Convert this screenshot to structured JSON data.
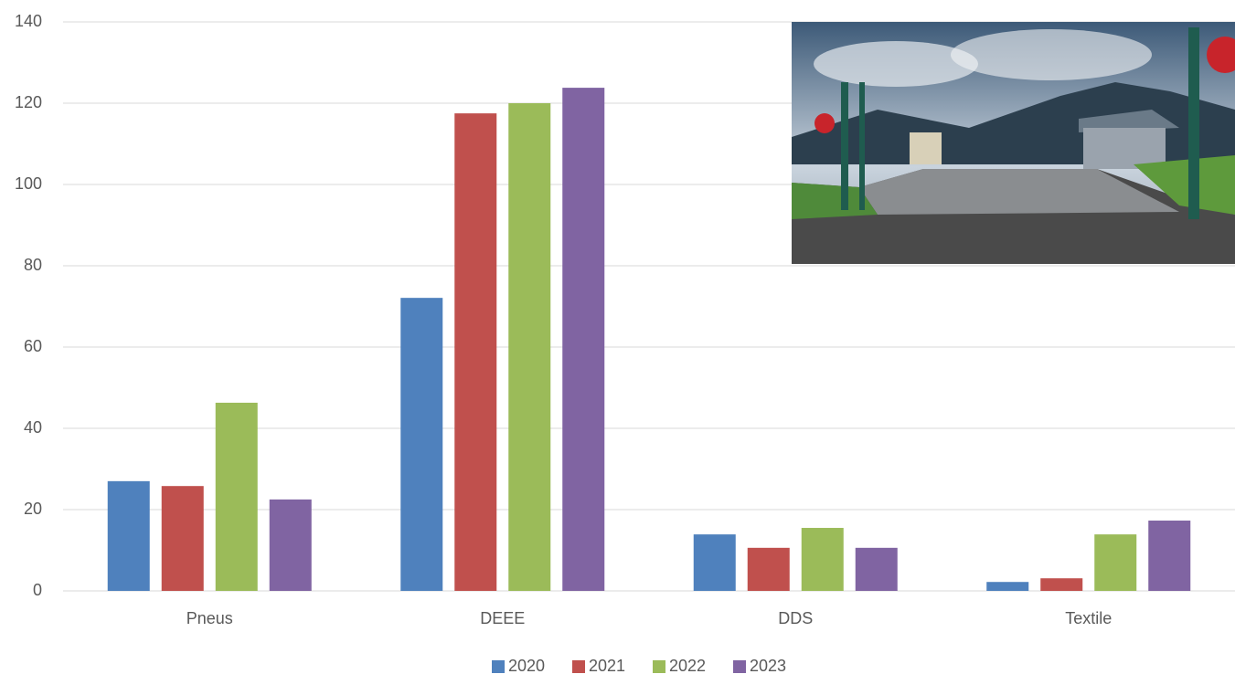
{
  "chart_data": {
    "type": "bar",
    "categories": [
      "Pneus",
      "DEEE",
      "DDS",
      "Textile"
    ],
    "series": [
      {
        "name": "2020",
        "color": "#4f81bd",
        "values": [
          27,
          72.1,
          13.9,
          2.2
        ]
      },
      {
        "name": "2021",
        "color": "#c0504d",
        "values": [
          25.8,
          117.5,
          10.6,
          3.1
        ]
      },
      {
        "name": "2022",
        "color": "#9bbb59",
        "values": [
          46.3,
          120,
          15.5,
          13.9
        ]
      },
      {
        "name": "2023",
        "color": "#8064a2",
        "values": [
          22.5,
          123.8,
          10.6,
          17.3
        ]
      }
    ],
    "ylim": [
      0,
      140
    ],
    "yticks": [
      0,
      20,
      40,
      60,
      80,
      100,
      120,
      140
    ],
    "grid": true,
    "legend": "bottom"
  }
}
